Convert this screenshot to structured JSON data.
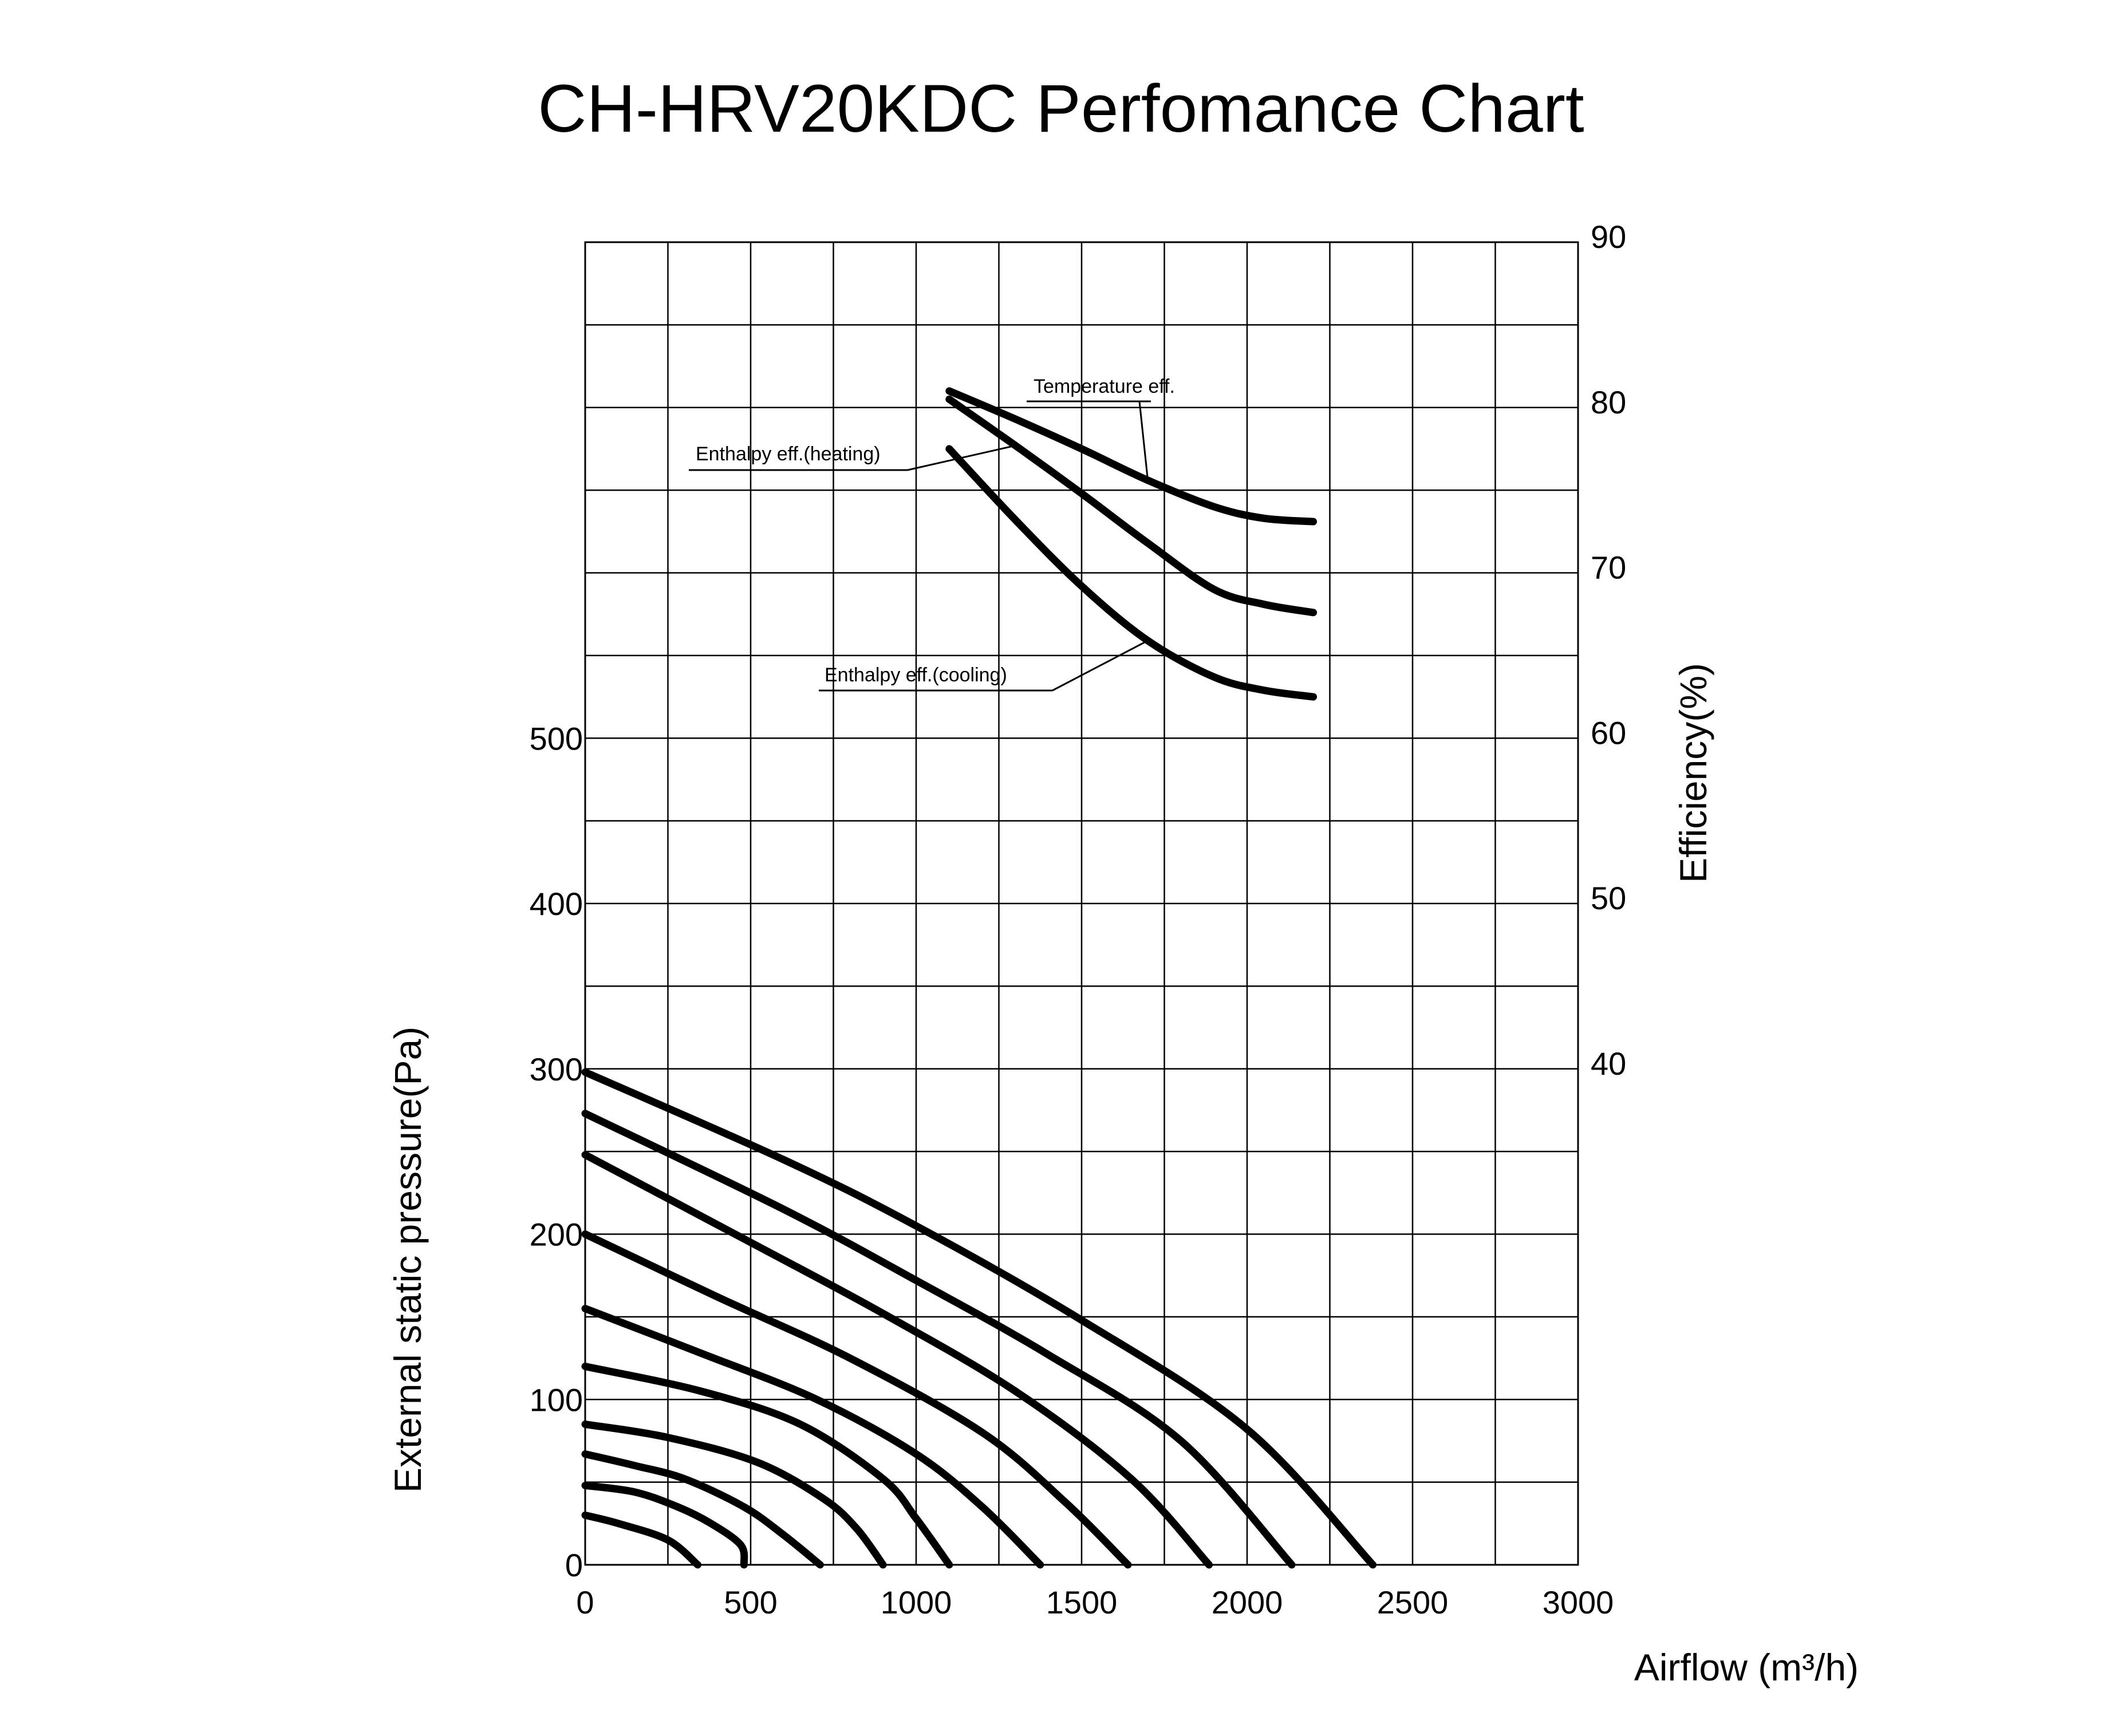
{
  "chart_data": {
    "type": "line",
    "title": "CH-HRV20KDC Perfomance Chart",
    "xlabel": "Airflow (m³/h)",
    "ylabel_left": "External static pressure(Pa)",
    "ylabel_right": "Efficiency(%)",
    "xlim": [
      0,
      3000
    ],
    "ylim_left": [
      0,
      800
    ],
    "ylim_right": [
      10,
      90
    ],
    "grid": true,
    "x_ticks": [
      "0",
      "500",
      "1000",
      "1500",
      "2000",
      "2500",
      "3000"
    ],
    "y_left_ticks": [
      "0",
      "100",
      "200",
      "300",
      "400",
      "500"
    ],
    "y_right_ticks": [
      "40",
      "50",
      "60",
      "70",
      "80",
      "90"
    ],
    "pressure_curves": [
      {
        "points": [
          [
            0,
            30
          ],
          [
            100,
            25
          ],
          [
            250,
            15
          ],
          [
            340,
            0
          ]
        ]
      },
      {
        "points": [
          [
            0,
            48
          ],
          [
            150,
            44
          ],
          [
            280,
            35
          ],
          [
            380,
            25
          ],
          [
            470,
            12
          ],
          [
            480,
            0
          ]
        ]
      },
      {
        "points": [
          [
            0,
            67
          ],
          [
            150,
            60
          ],
          [
            300,
            52
          ],
          [
            480,
            35
          ],
          [
            600,
            18
          ],
          [
            710,
            0
          ]
        ]
      },
      {
        "points": [
          [
            0,
            85
          ],
          [
            250,
            77
          ],
          [
            520,
            62
          ],
          [
            720,
            40
          ],
          [
            820,
            22
          ],
          [
            900,
            0
          ]
        ]
      },
      {
        "points": [
          [
            0,
            120
          ],
          [
            350,
            105
          ],
          [
            650,
            85
          ],
          [
            900,
            52
          ],
          [
            1000,
            28
          ],
          [
            1100,
            0
          ]
        ]
      },
      {
        "points": [
          [
            0,
            155
          ],
          [
            350,
            128
          ],
          [
            700,
            100
          ],
          [
            1000,
            67
          ],
          [
            1200,
            35
          ],
          [
            1375,
            0
          ]
        ]
      },
      {
        "points": [
          [
            0,
            200
          ],
          [
            400,
            162
          ],
          [
            800,
            125
          ],
          [
            1200,
            80
          ],
          [
            1450,
            38
          ],
          [
            1640,
            0
          ]
        ]
      },
      {
        "points": [
          [
            0,
            248
          ],
          [
            500,
            195
          ],
          [
            900,
            152
          ],
          [
            1300,
            105
          ],
          [
            1650,
            52
          ],
          [
            1885,
            0
          ]
        ]
      },
      {
        "points": [
          [
            0,
            273
          ],
          [
            600,
            215
          ],
          [
            1000,
            172
          ],
          [
            1400,
            127
          ],
          [
            1800,
            75
          ],
          [
            2135,
            0
          ]
        ]
      },
      {
        "points": [
          [
            0,
            298
          ],
          [
            600,
            245
          ],
          [
            1000,
            205
          ],
          [
            1500,
            148
          ],
          [
            2000,
            82
          ],
          [
            2380,
            0
          ]
        ]
      }
    ],
    "efficiency_series": [
      {
        "name": "Temperature eff.",
        "x": [
          1100,
          1300,
          1500,
          1700,
          1900,
          2050,
          2200
        ],
        "y": [
          81,
          79.3,
          77.5,
          75.6,
          74,
          73.3,
          73.1
        ]
      },
      {
        "name": "Enthalpy eff.(heating)",
        "x": [
          1100,
          1300,
          1500,
          1700,
          1900,
          2050,
          2200
        ],
        "y": [
          80.5,
          77.7,
          74.8,
          71.8,
          69,
          68.1,
          67.6
        ]
      },
      {
        "name": "Enthalpy eff.(cooling)",
        "x": [
          1100,
          1300,
          1500,
          1700,
          1900,
          2050,
          2200
        ],
        "y": [
          77.5,
          73.2,
          69.2,
          65.9,
          63.7,
          62.9,
          62.5
        ]
      }
    ]
  }
}
